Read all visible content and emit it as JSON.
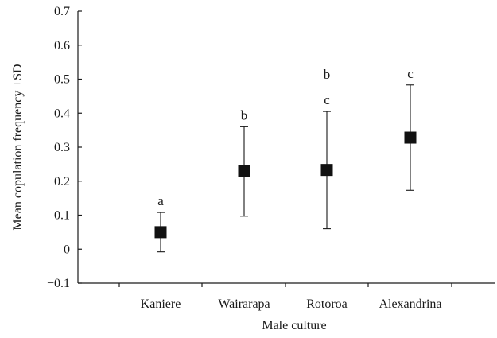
{
  "chart_data": {
    "type": "scatter",
    "xlabel": "Male culture",
    "ylabel": "Mean copulation frequency ±SD",
    "ylim": [
      -0.1,
      0.7
    ],
    "yticks": [
      -0.1,
      0,
      0.1,
      0.2,
      0.3,
      0.4,
      0.5,
      0.6,
      0.7
    ],
    "ytick_labels": [
      "−0.1",
      "0",
      "0.1",
      "0.2",
      "0.3",
      "0.4",
      "0.5",
      "0.6",
      "0.7"
    ],
    "categories": [
      "Kaniere",
      "Wairarapa",
      "Rotoroa",
      "Alexandrina"
    ],
    "values": [
      0.05,
      0.23,
      0.233,
      0.328
    ],
    "sd_lower": [
      -0.008,
      0.097,
      0.06,
      0.173
    ],
    "sd_upper": [
      0.108,
      0.36,
      0.405,
      0.483
    ],
    "significance_labels": [
      [
        "a"
      ],
      [
        "b"
      ],
      [
        "b",
        "c"
      ],
      [
        "c"
      ]
    ],
    "grid": false,
    "legend": "none"
  }
}
